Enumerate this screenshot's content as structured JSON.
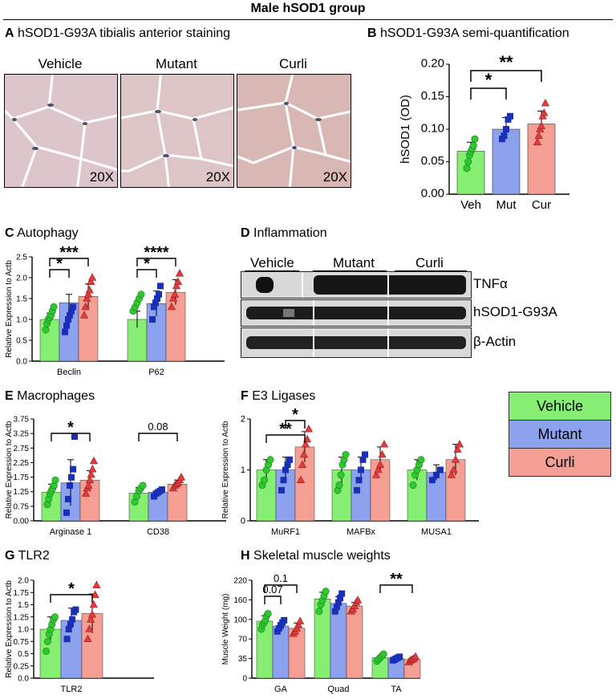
{
  "title": "Male hSOD1 group",
  "colors": {
    "vehicle": "#86ef73",
    "mutant": "#8da2ef",
    "curli": "#f59f94",
    "vehicle_pt": "#2ec92e",
    "mutant_pt": "#1a2fb8",
    "curli_pt": "#e23b3b"
  },
  "panels": {
    "a": {
      "letter": "A",
      "title": "hSOD1-G93A tibialis anterior staining",
      "images": [
        {
          "label": "Vehicle",
          "mag": "20X"
        },
        {
          "label": "Mutant",
          "mag": "20X"
        },
        {
          "label": "Curli",
          "mag": "20X"
        }
      ]
    },
    "b": {
      "letter": "B",
      "title": "hSOD1-G93A semi-quantification"
    },
    "c": {
      "letter": "C",
      "title": "Autophagy"
    },
    "d": {
      "letter": "D",
      "title": "Inflammation",
      "lanes": [
        "Vehicle",
        "Mutant",
        "Curli"
      ],
      "bands": [
        "TNFα",
        "hSOD1-G93A",
        "β-Actin"
      ]
    },
    "e": {
      "letter": "E",
      "title": "Macrophages"
    },
    "f": {
      "letter": "F",
      "title": "E3 Ligases"
    },
    "g": {
      "letter": "G",
      "title": "TLR2"
    },
    "h": {
      "letter": "H",
      "title": "Skeletal muscle weights"
    }
  },
  "legend": [
    "Vehicle",
    "Mutant",
    "Curli"
  ],
  "chart_data": [
    {
      "panel": "B",
      "type": "bar",
      "ylabel": "hSOD1 (OD)",
      "ylim": [
        0,
        0.2
      ],
      "yticks": [
        "0.00",
        "0.05",
        "0.10",
        "0.15",
        "0.20"
      ],
      "categories": [
        "Veh",
        "Mut",
        "Cur"
      ],
      "values": [
        0.066,
        0.1,
        0.108
      ],
      "errors": [
        0.014,
        0.018,
        0.02
      ],
      "points": [
        [
          0.04,
          0.05,
          0.06,
          0.065,
          0.07,
          0.075,
          0.085
        ],
        [
          0.085,
          0.09,
          0.1,
          0.115,
          0.12
        ],
        [
          0.08,
          0.09,
          0.1,
          0.105,
          0.12,
          0.125,
          0.14
        ]
      ],
      "annotations": [
        {
          "from": 0,
          "to": 1,
          "text": "*"
        },
        {
          "from": 0,
          "to": 2,
          "text": "**"
        }
      ]
    },
    {
      "panel": "C",
      "type": "bar",
      "ylabel": "Relative Expression to Actb",
      "ylim": [
        0,
        2.5
      ],
      "yticks": [
        "0.0",
        "0.5",
        "1.0",
        "1.5",
        "2.0",
        "2.5"
      ],
      "groups": [
        "Beclin",
        "P62"
      ],
      "series": [
        {
          "name": "Vehicle",
          "values": [
            1.0,
            1.0
          ],
          "errors": [
            0.15,
            0.2
          ]
        },
        {
          "name": "Mutant",
          "values": [
            1.4,
            1.38
          ],
          "errors": [
            0.2,
            0.3
          ]
        },
        {
          "name": "Curli",
          "values": [
            1.55,
            1.65
          ],
          "errors": [
            0.3,
            0.3
          ]
        }
      ],
      "points": [
        [
          [
            0.75,
            0.9,
            1.0,
            1.05,
            1.1,
            1.2,
            1.3
          ],
          [
            1.2,
            1.3,
            1.4,
            1.5,
            1.6
          ]
        ],
        [
          [
            0.7,
            0.85,
            1.0,
            1.1,
            1.2,
            1.3
          ],
          [
            1.0,
            1.3,
            1.4,
            1.5,
            1.6,
            1.8
          ]
        ],
        [
          [
            1.1,
            1.3,
            1.5,
            1.6,
            1.7,
            1.9,
            2.0
          ],
          [
            1.3,
            1.5,
            1.6,
            1.8,
            1.9,
            2.1
          ]
        ]
      ],
      "annotations": [
        {
          "group": 0,
          "from": 0,
          "to": 1,
          "text": "*"
        },
        {
          "group": 0,
          "from": 0,
          "to": 2,
          "text": "***"
        },
        {
          "group": 1,
          "from": 0,
          "to": 1,
          "text": "*"
        },
        {
          "group": 1,
          "from": 0,
          "to": 2,
          "text": "****"
        }
      ]
    },
    {
      "panel": "E",
      "type": "bar",
      "ylabel": "Relative Expression to Actb",
      "ylim": [
        0,
        3.75
      ],
      "yticks": [
        "0.00",
        "0.75",
        "1.25",
        "1.75",
        "2.25",
        "2.75",
        "3.25",
        "3.75"
      ],
      "groups": [
        "Arginase 1",
        "CD38"
      ],
      "series": [
        {
          "name": "Vehicle",
          "values": [
            1.05,
            1.02
          ],
          "errors": [
            0.3,
            0.2
          ]
        },
        {
          "name": "Mutant",
          "values": [
            1.4,
            1.05
          ],
          "errors": [
            0.85,
            0.1
          ]
        },
        {
          "name": "Curli",
          "values": [
            1.5,
            1.35
          ],
          "errors": [
            0.35,
            0.15
          ]
        }
      ],
      "points": [
        [
          [
            0.6,
            0.8,
            1.0,
            1.1,
            1.2,
            1.3,
            1.5
          ],
          [
            0.7,
            0.9,
            1.1,
            1.2,
            1.3
          ]
        ],
        [
          [
            0.3,
            0.8,
            1.3,
            1.6,
            1.9,
            3.1
          ],
          [
            0.9,
            1.0,
            1.05,
            1.1,
            1.15
          ]
        ],
        [
          [
            1.0,
            1.2,
            1.3,
            1.5,
            1.7,
            1.9,
            2.2
          ],
          [
            1.2,
            1.3,
            1.35,
            1.4,
            1.5,
            1.6
          ]
        ]
      ],
      "annotations": [
        {
          "group": 0,
          "from": 0,
          "to": 2,
          "text": "*"
        },
        {
          "group": 1,
          "from": 0,
          "to": 2,
          "text": "0.08"
        }
      ]
    },
    {
      "panel": "F",
      "type": "bar",
      "ylabel": "Relative Expression to Actb",
      "ylim": [
        0,
        2
      ],
      "yticks": [
        "0",
        "1",
        "2"
      ],
      "groups": [
        "MuRF1",
        "MAFBx",
        "MUSA1"
      ],
      "series": [
        {
          "name": "Vehicle",
          "values": [
            1.0,
            1.0,
            1.0
          ],
          "errors": [
            0.2,
            0.25,
            0.2
          ]
        },
        {
          "name": "Mutant",
          "values": [
            1.0,
            1.0,
            0.95
          ],
          "errors": [
            0.25,
            0.25,
            0.15
          ]
        },
        {
          "name": "Curli",
          "values": [
            1.45,
            1.2,
            1.2
          ],
          "errors": [
            0.3,
            0.25,
            0.3
          ]
        }
      ],
      "points": [
        [
          [
            0.7,
            0.8,
            1.0,
            1.1,
            1.2
          ],
          [
            0.6,
            0.7,
            0.9,
            1.1,
            1.2,
            1.3
          ],
          [
            0.7,
            0.9,
            1.0,
            1.1,
            1.2
          ]
        ],
        [
          [
            0.6,
            0.8,
            1.0,
            1.1,
            1.2
          ],
          [
            0.6,
            0.8,
            1.0,
            1.2,
            1.3
          ],
          [
            0.8,
            0.9,
            1.0
          ]
        ],
        [
          [
            0.8,
            1.1,
            1.3,
            1.5,
            1.6,
            1.8
          ],
          [
            0.9,
            1.0,
            1.1,
            1.3,
            1.5
          ],
          [
            0.9,
            1.0,
            1.2,
            1.4,
            1.5
          ]
        ]
      ],
      "annotations": [
        {
          "group": 0,
          "from": 0,
          "to": 2,
          "text": "**"
        },
        {
          "group": 0,
          "from": 1,
          "to": 2,
          "text": "*"
        }
      ]
    },
    {
      "panel": "G",
      "type": "bar",
      "ylabel": "Relative Expression to Actb",
      "ylim": [
        0,
        2
      ],
      "yticks": [
        "0.0",
        "0.25",
        "0.5",
        "0.75",
        "1.0",
        "1.25",
        "1.5",
        "1.75",
        "2.0"
      ],
      "groups": [
        "TLR2"
      ],
      "series": [
        {
          "name": "Vehicle",
          "values": [
            1.0
          ],
          "errors": [
            0.25
          ]
        },
        {
          "name": "Mutant",
          "values": [
            1.18
          ],
          "errors": [
            0.25
          ]
        },
        {
          "name": "Curli",
          "values": [
            1.32
          ],
          "errors": [
            0.4
          ]
        }
      ],
      "points": [
        [
          [
            0.55,
            0.75,
            0.9,
            1.0,
            1.1,
            1.2,
            1.25
          ]
        ],
        [
          [
            0.8,
            1.0,
            1.1,
            1.2,
            1.35,
            1.4
          ]
        ],
        [
          [
            0.8,
            1.0,
            1.2,
            1.3,
            1.5,
            1.7,
            1.9
          ]
        ]
      ],
      "annotations": [
        {
          "group": 0,
          "from": 0,
          "to": 2,
          "text": "*"
        }
      ]
    },
    {
      "panel": "H",
      "type": "bar",
      "ylabel": "Muscle Weight (mg)",
      "ylim": [
        0,
        220
      ],
      "yticks": [
        "0",
        "35",
        "70",
        "100",
        "160",
        "220"
      ],
      "groups": [
        "GA",
        "Quad",
        "TA"
      ],
      "series": [
        {
          "name": "Vehicle",
          "values": [
            128,
            178,
            46
          ],
          "errors": [
            12,
            15,
            4
          ]
        },
        {
          "name": "Mutant",
          "values": [
            117,
            168,
            44
          ],
          "errors": [
            8,
            15,
            3
          ]
        },
        {
          "name": "Curli",
          "values": [
            112,
            162,
            42
          ],
          "errors": [
            12,
            8,
            3
          ]
        }
      ],
      "points": [
        [
          [
            110,
            120,
            125,
            130,
            140,
            145
          ],
          [
            150,
            165,
            175,
            185,
            195
          ],
          [
            38,
            42,
            46,
            50,
            54
          ]
        ],
        [
          [
            105,
            112,
            118,
            125,
            130
          ],
          [
            150,
            160,
            170,
            180,
            190
          ],
          [
            40,
            42,
            44,
            46,
            48
          ]
        ],
        [
          [
            100,
            105,
            112,
            120,
            128
          ],
          [
            150,
            155,
            162,
            170,
            175
          ],
          [
            36,
            40,
            42,
            44,
            48
          ]
        ]
      ],
      "annotations": [
        {
          "group": 0,
          "from": 0,
          "to": 1,
          "text": "0.07"
        },
        {
          "group": 0,
          "from": 0,
          "to": 2,
          "text": "0.1"
        },
        {
          "group": 2,
          "from": 0,
          "to": 2,
          "text": "**"
        }
      ]
    }
  ]
}
